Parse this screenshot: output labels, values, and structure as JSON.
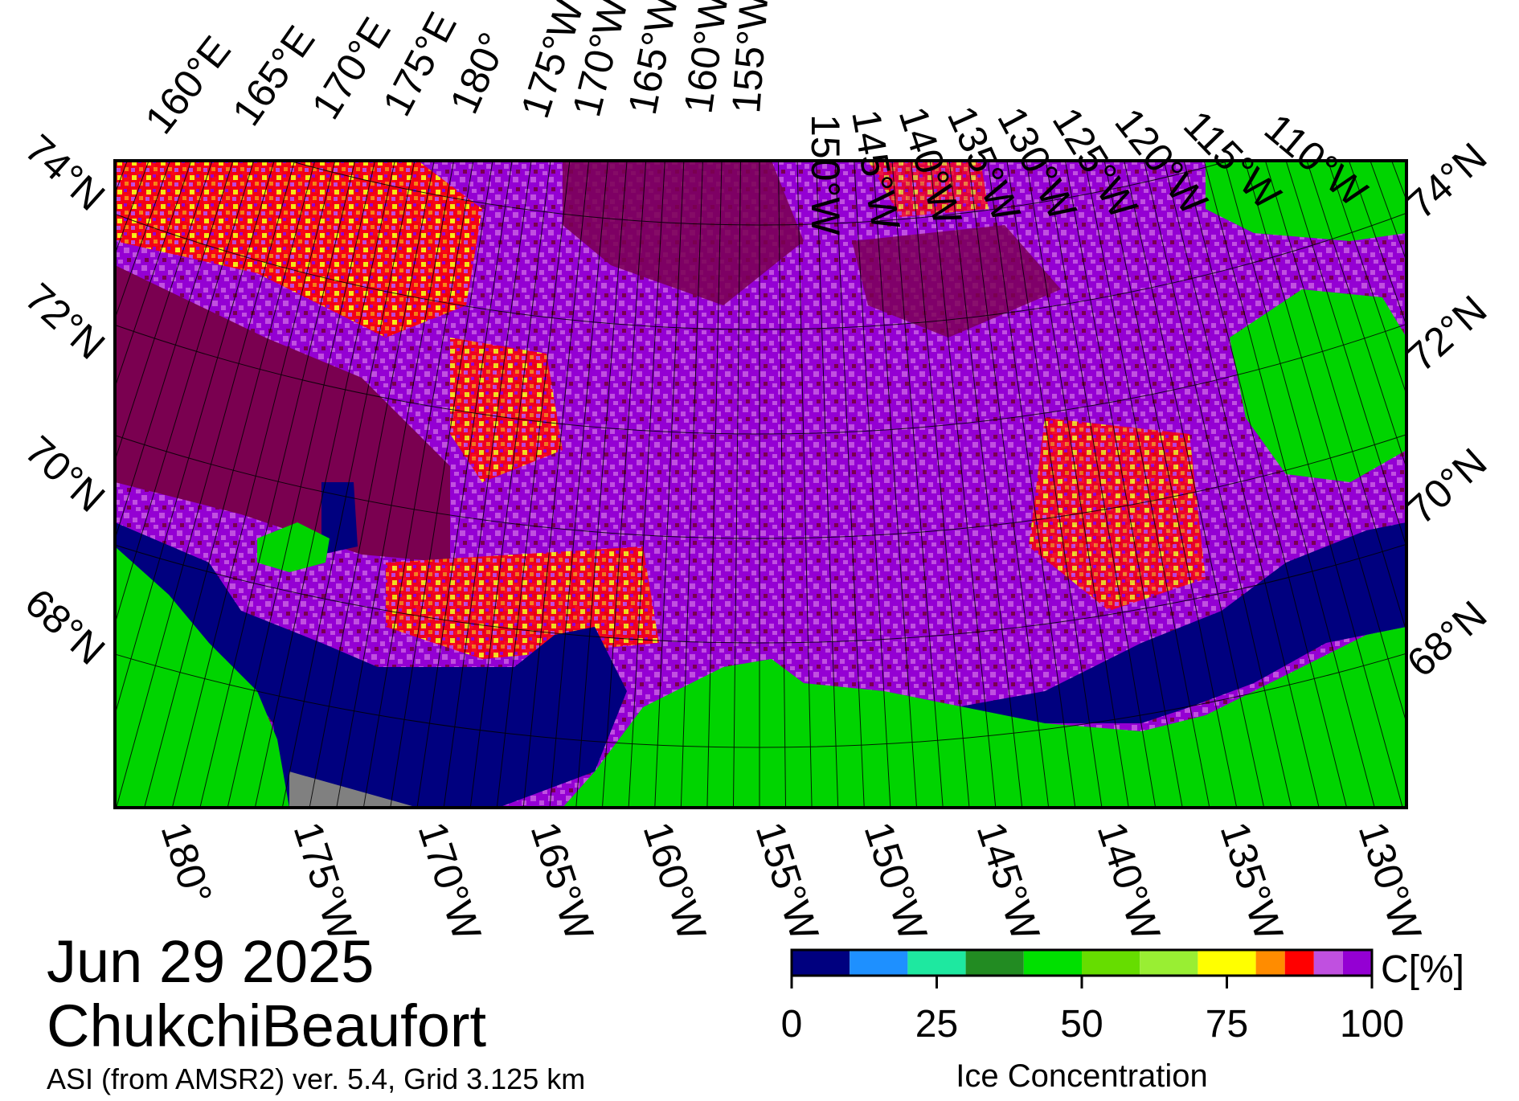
{
  "date": "Jun 29 2025",
  "region": "ChukchiBeaufort",
  "product": "ASI (from AMSR2) ver. 5.4,  Grid 3.125 km",
  "top_labels": [
    "160°E",
    "165°E",
    "170°E",
    "175°E",
    "180°",
    "175°W",
    "170°W",
    "165°W",
    "160°W",
    "155°W",
    "150°W",
    "145°W",
    "140°W",
    "135°W",
    "130°W",
    "125°W",
    "120°W",
    "115°W",
    "110°W"
  ],
  "bottom_labels": [
    "180°",
    "175°W",
    "170°W",
    "165°W",
    "160°W",
    "155°W",
    "150°W",
    "145°W",
    "140°W",
    "135°W",
    "130°W"
  ],
  "left_labels": [
    "74°N",
    "72°N",
    "70°N",
    "68°N"
  ],
  "right_labels": [
    "74°N",
    "72°N",
    "70°N",
    "68°N"
  ],
  "colorbar": {
    "title": "Ice Concentration",
    "unit": "C[%]",
    "ticks": [
      "0",
      "25",
      "50",
      "75",
      "100"
    ],
    "colors": [
      "#00007f",
      "#1e90ff",
      "#1ee8a0",
      "#228b22",
      "#00e000",
      "#66dd00",
      "#99ee33",
      "#ffff00",
      "#ff8c00",
      "#ff0000",
      "#c050e0",
      "#9400d3"
    ]
  },
  "colors": {
    "land": "#00d400",
    "coast": "#00007f",
    "ice_dark": "#7a0050",
    "ice_purple": "#9400d3",
    "ice_lilac": "#c050e0",
    "ice_red": "#ff0000",
    "ice_yellow": "#ffff00",
    "no_data": "#808080"
  }
}
